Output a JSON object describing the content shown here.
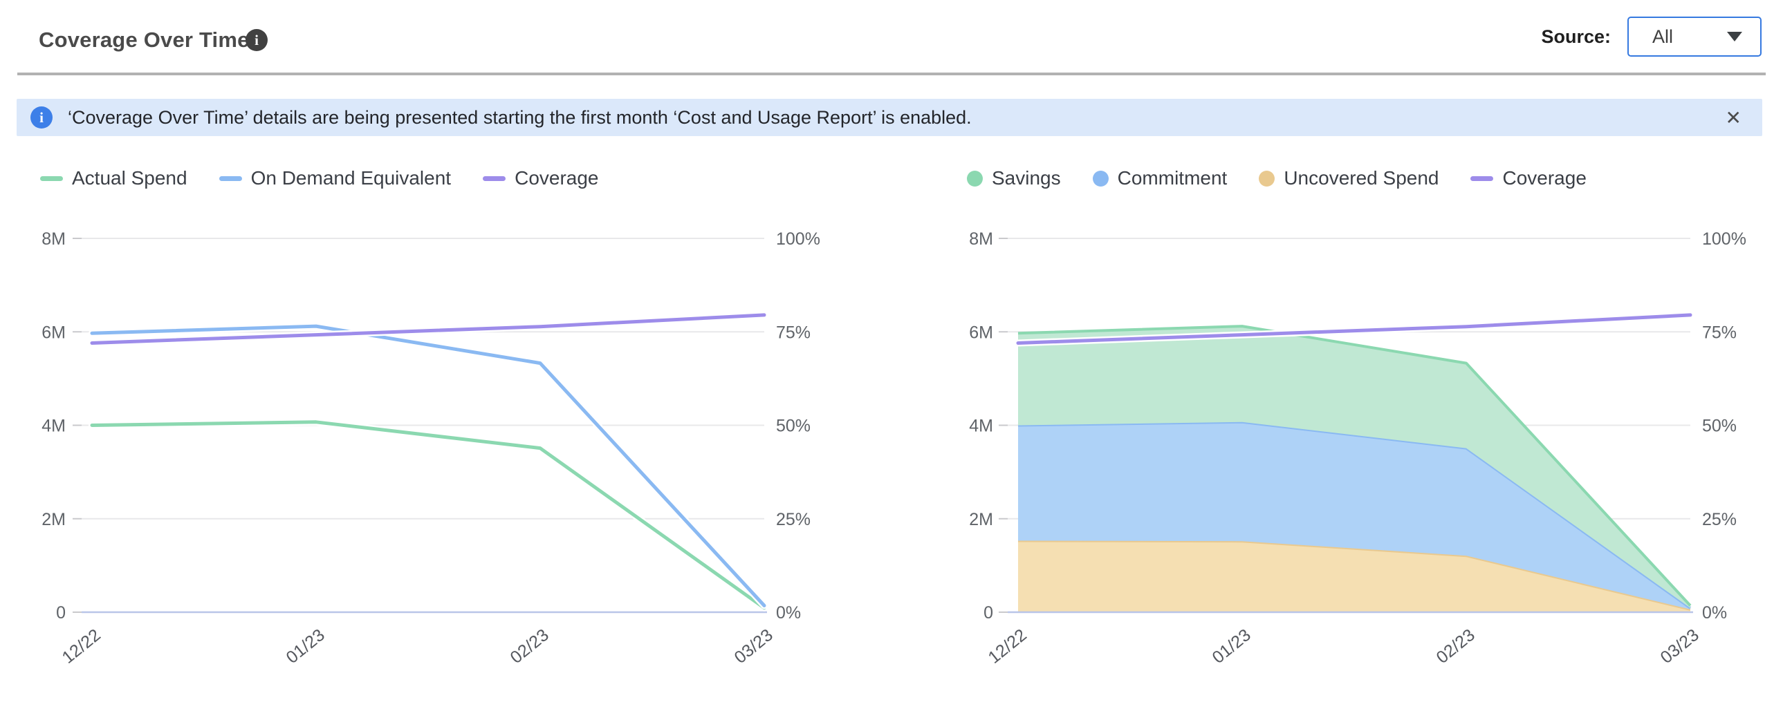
{
  "header": {
    "title": "Coverage Over Time",
    "info_icon_glyph": "i",
    "source_label": "Source:",
    "source_value": "All"
  },
  "banner": {
    "text": "‘Coverage Over Time’ details are being presented starting the first month ‘Cost and Usage Report’ is enabled.",
    "close_glyph": "✕",
    "info_icon_glyph": "i",
    "background": "#dbe8fa",
    "icon_color": "#3d7fe8"
  },
  "colors": {
    "green": "#8bd8b0",
    "green_fill": "#c0e8d3",
    "blue": "#8ab9f2",
    "blue_fill": "#aed2f7",
    "orange": "#e9c98f",
    "orange_fill": "#f5dfb2",
    "purple": "#9d8cea",
    "grid": "#e8e8ea",
    "zero_axis": "#b9c5e8",
    "tick": "#c9c9cc",
    "axis_text": "#5f6368"
  },
  "chart_data": [
    {
      "type": "line",
      "categories": [
        "12/22",
        "01/23",
        "02/23",
        "03/23"
      ],
      "y_left": {
        "ticks": [
          "8M",
          "6M",
          "4M",
          "2M",
          "0"
        ],
        "min": 0,
        "max": 8,
        "unit": "M"
      },
      "y_right": {
        "ticks": [
          "100%",
          "75%",
          "50%",
          "25%",
          "0%"
        ],
        "min": 0,
        "max": 100,
        "unit": "%"
      },
      "grid": true,
      "legend_position": "top",
      "series": [
        {
          "name": "Actual Spend",
          "type": "line",
          "axis": "left",
          "color": "green",
          "values": [
            4.0,
            4.07,
            3.51,
            0.09
          ]
        },
        {
          "name": "On Demand Equivalent",
          "type": "line",
          "axis": "left",
          "color": "blue",
          "values": [
            5.97,
            6.12,
            5.33,
            0.14
          ]
        },
        {
          "name": "Coverage",
          "type": "line",
          "axis": "right",
          "color": "purple",
          "values": [
            72,
            74.2,
            76.4,
            79.5
          ]
        }
      ],
      "legend": [
        {
          "label": "Actual Spend",
          "color": "green",
          "marker": "dash"
        },
        {
          "label": "On Demand Equivalent",
          "color": "blue",
          "marker": "dash"
        },
        {
          "label": "Coverage",
          "color": "purple",
          "marker": "dash"
        }
      ]
    },
    {
      "type": "area",
      "categories": [
        "12/22",
        "01/23",
        "02/23",
        "03/23"
      ],
      "y_left": {
        "ticks": [
          "8M",
          "6M",
          "4M",
          "2M",
          "0"
        ],
        "min": 0,
        "max": 8,
        "unit": "M"
      },
      "y_right": {
        "ticks": [
          "100%",
          "75%",
          "50%",
          "25%",
          "0%"
        ],
        "min": 0,
        "max": 100,
        "unit": "%"
      },
      "grid": true,
      "stacked": true,
      "legend_position": "top",
      "series": [
        {
          "name": "Uncovered Spend",
          "type": "area",
          "axis": "left",
          "color": "orange",
          "fill": "orange_fill",
          "values": [
            1.53,
            1.52,
            1.21,
            0.06
          ]
        },
        {
          "name": "Commitment",
          "type": "area",
          "axis": "left",
          "color": "blue",
          "fill": "blue_fill",
          "values": [
            2.47,
            2.55,
            2.3,
            0.03
          ]
        },
        {
          "name": "Savings",
          "type": "area",
          "axis": "left",
          "color": "green",
          "fill": "green_fill",
          "values": [
            1.97,
            2.05,
            1.82,
            0.05
          ]
        },
        {
          "name": "Coverage",
          "type": "line",
          "axis": "right",
          "color": "purple",
          "values": [
            72,
            74.2,
            76.4,
            79.5
          ]
        }
      ],
      "legend": [
        {
          "label": "Savings",
          "color": "green",
          "marker": "dot"
        },
        {
          "label": "Commitment",
          "color": "blue",
          "marker": "dot"
        },
        {
          "label": "Uncovered Spend",
          "color": "orange",
          "marker": "dot"
        },
        {
          "label": "Coverage",
          "color": "purple",
          "marker": "dash"
        }
      ]
    }
  ]
}
